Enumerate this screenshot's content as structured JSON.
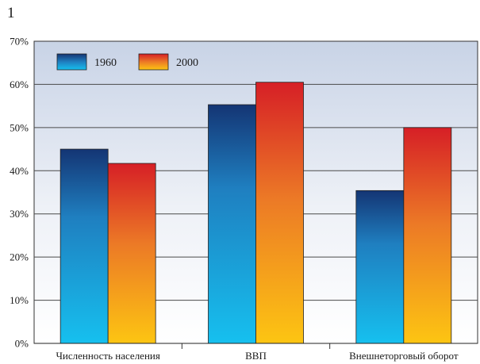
{
  "corner_label": "1",
  "colors": {
    "series_1960_top": "#143574",
    "series_1960_mid": "#1f7fc0",
    "series_1960_bottom": "#16c0ef",
    "series_2000_top": "#d61f26",
    "series_2000_mid": "#ec7a26",
    "series_2000_bottom": "#fdc512",
    "plot_top": "#c8d3e6",
    "plot_bottom": "#ffffff"
  },
  "chart_data": {
    "type": "bar",
    "title": "",
    "xlabel": "",
    "ylabel": "",
    "categories": [
      "Численность населения",
      "ВВП",
      "Внешнеторговый оборот"
    ],
    "series": [
      {
        "name": "1960",
        "values": [
          45,
          55.3,
          35.4
        ]
      },
      {
        "name": "2000",
        "values": [
          41.7,
          60.5,
          50
        ]
      }
    ],
    "ylim": [
      0,
      70
    ],
    "yticks": [
      "0%",
      "10%",
      "20%",
      "30%",
      "40%",
      "50%",
      "60%",
      "70%"
    ],
    "grid": true,
    "legend_position": "top-left"
  }
}
